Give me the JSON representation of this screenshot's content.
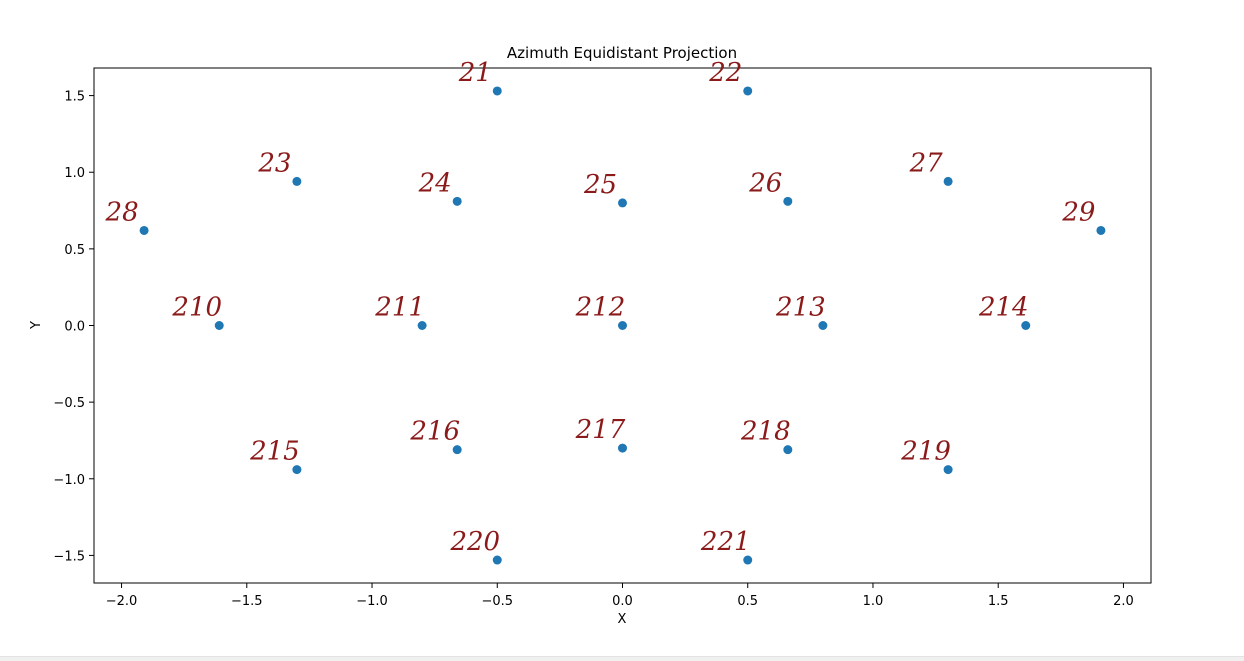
{
  "chart_data": {
    "type": "scatter",
    "title": "Azimuth Equidistant Projection",
    "xlabel": "X",
    "ylabel": "Y",
    "xlim": [
      -2.11,
      2.11
    ],
    "ylim": [
      -1.68,
      1.68
    ],
    "xticks": [
      -2.0,
      -1.5,
      -1.0,
      -0.5,
      0.0,
      0.5,
      1.0,
      1.5,
      2.0
    ],
    "xtick_labels": [
      "−2.0",
      "−1.5",
      "−1.0",
      "−0.5",
      "0.0",
      "0.5",
      "1.0",
      "1.5",
      "2.0"
    ],
    "yticks": [
      -1.5,
      -1.0,
      -0.5,
      0.0,
      0.5,
      1.0,
      1.5
    ],
    "ytick_labels": [
      "−1.5",
      "−1.0",
      "−0.5",
      "0.0",
      "0.5",
      "1.0",
      "1.5"
    ],
    "grid": false,
    "marker_color": "#1f77b4",
    "annotation_color": "#8b1a1a",
    "points": [
      {
        "x": -0.5,
        "y": 1.53,
        "label": "21"
      },
      {
        "x": 0.5,
        "y": 1.53,
        "label": "22"
      },
      {
        "x": -1.3,
        "y": 0.94,
        "label": "23"
      },
      {
        "x": -0.66,
        "y": 0.81,
        "label": "24"
      },
      {
        "x": 0.0,
        "y": 0.8,
        "label": "25"
      },
      {
        "x": 0.66,
        "y": 0.81,
        "label": "26"
      },
      {
        "x": 1.3,
        "y": 0.94,
        "label": "27"
      },
      {
        "x": -1.91,
        "y": 0.62,
        "label": "28"
      },
      {
        "x": 1.91,
        "y": 0.62,
        "label": "29"
      },
      {
        "x": -1.61,
        "y": 0.0,
        "label": "210"
      },
      {
        "x": -0.8,
        "y": 0.0,
        "label": "211"
      },
      {
        "x": 0.0,
        "y": 0.0,
        "label": "212"
      },
      {
        "x": 0.8,
        "y": 0.0,
        "label": "213"
      },
      {
        "x": 1.61,
        "y": 0.0,
        "label": "214"
      },
      {
        "x": -1.3,
        "y": -0.94,
        "label": "215"
      },
      {
        "x": -0.66,
        "y": -0.81,
        "label": "216"
      },
      {
        "x": 0.0,
        "y": -0.8,
        "label": "217"
      },
      {
        "x": 0.66,
        "y": -0.81,
        "label": "218"
      },
      {
        "x": 1.3,
        "y": -0.94,
        "label": "219"
      },
      {
        "x": -0.5,
        "y": -1.53,
        "label": "220"
      },
      {
        "x": 0.5,
        "y": -1.53,
        "label": "221"
      }
    ]
  }
}
